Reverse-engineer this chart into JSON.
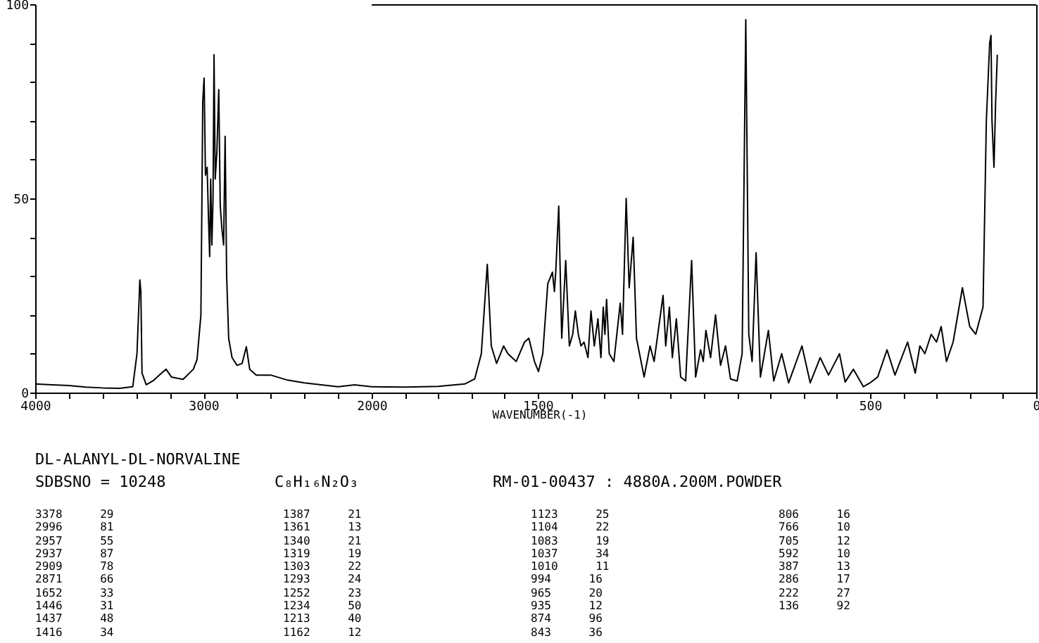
{
  "chart_data": [
    {
      "type": "line",
      "title": "DL-ALANYL-DL-NORVALINE",
      "subtitle": "SDBSNO = 10248",
      "annotations": [
        "C₈H₁₆N₂O₃",
        "RM-01-00437 : 4880A.200M.POWDER",
        "3378 29",
        "2996 81",
        "2957 55",
        "2937 87",
        "2909 78",
        "2871 66",
        "1652 33",
        "1446 31",
        "1437 48",
        "1416 34",
        "1387 21",
        "1361 13",
        "1340 21",
        "1319 19",
        "1303 22",
        "1293 24",
        "1252 23",
        "1234 50",
        "1213 40",
        "1162 12",
        "1123 25",
        "1104 22",
        "1083 19",
        "1037 34",
        "1010 11",
        "994 16",
        "965 20",
        "935 12",
        "874 96",
        "843 36",
        "806 16",
        "766 10",
        "705 12",
        "592 10",
        "387 13",
        "286 17",
        "222 27",
        "136 92"
      ],
      "x": [
        4000,
        3900,
        3800,
        3700,
        3600,
        3500,
        3420,
        3395,
        3378,
        3372,
        3365,
        3340,
        3300,
        3250,
        3222,
        3190,
        3121,
        3060,
        3038,
        3015,
        3004,
        2996,
        2988,
        2978,
        2970,
        2963,
        2957,
        2950,
        2943,
        2937,
        2930,
        2920,
        2909,
        2900,
        2890,
        2880,
        2871,
        2862,
        2850,
        2830,
        2800,
        2770,
        2745,
        2725,
        2686,
        2600,
        2500,
        2400,
        2300,
        2200,
        2100,
        2000
      ],
      "series": [
        {
          "color": "#000000",
          "values": [
            2.2,
            2,
            1.8,
            1.4,
            1.2,
            1.1,
            1.5,
            10,
            29,
            26,
            5,
            2,
            3,
            5,
            6,
            4,
            3.4,
            6,
            8.5,
            20,
            75,
            81,
            56,
            58,
            45,
            35,
            55,
            38,
            50,
            87,
            55,
            62,
            78,
            48,
            42,
            38,
            66,
            30,
            14,
            9,
            7,
            7.5,
            11.8,
            6,
            4.5,
            4.5,
            3.2,
            2.5,
            2,
            1.5,
            2,
            1.5
          ]
        }
      ],
      "xlim": [
        4000,
        2000
      ],
      "ylim": [
        0,
        100
      ],
      "xticks": [
        4000,
        {
          "value": 3800,
          "label": null
        },
        {
          "value": 3600,
          "label": null
        },
        {
          "value": 3400,
          "label": null
        },
        {
          "value": 3200,
          "label": null
        },
        3000,
        {
          "value": 2800,
          "label": null
        },
        {
          "value": 2600,
          "label": null
        },
        {
          "value": 2400,
          "label": null
        },
        {
          "value": 2200,
          "label": null
        }
      ],
      "yticks": [
        0,
        {
          "value": 10,
          "label": null
        },
        {
          "value": 20,
          "label": null
        },
        {
          "value": 30,
          "label": null
        },
        {
          "value": 40,
          "label": null
        },
        50,
        {
          "value": 60,
          "label": null
        },
        {
          "value": 70,
          "label": null
        },
        {
          "value": 80,
          "label": null
        },
        {
          "value": 90,
          "label": null
        },
        100
      ],
      "marker": "none",
      "line_style": "solid"
    },
    {
      "type": "line",
      "xlabel": "WAVENUMBER(-1)",
      "x": [
        2000,
        1900,
        1800,
        1720,
        1690,
        1670,
        1652,
        1640,
        1624,
        1603,
        1590,
        1565,
        1540,
        1527,
        1510,
        1498,
        1485,
        1470,
        1456,
        1450,
        1446,
        1437,
        1428,
        1416,
        1405,
        1395,
        1387,
        1378,
        1370,
        1361,
        1349,
        1340,
        1330,
        1319,
        1310,
        1303,
        1298,
        1293,
        1285,
        1271,
        1252,
        1245,
        1234,
        1225,
        1213,
        1203,
        1180,
        1162,
        1150,
        1123,
        1115,
        1104,
        1095,
        1083,
        1070,
        1055,
        1037,
        1025,
        1010,
        1002,
        994,
        980,
        965,
        950,
        935,
        920,
        900,
        885,
        874,
        865,
        855,
        843,
        830,
        806,
        790,
        766,
        745,
        705,
        680,
        650,
        625,
        592,
        575,
        550,
        520,
        500,
        477,
        449,
        425,
        387,
        364,
        350,
        335,
        316,
        300,
        286,
        270,
        250,
        222,
        200,
        182,
        160,
        150,
        140,
        136,
        133,
        127,
        122,
        117
      ],
      "series": [
        {
          "color": "#000000",
          "values": [
            1.5,
            1.4,
            1.6,
            2.2,
            3.5,
            10,
            33,
            12,
            7.5,
            12,
            10,
            8,
            13,
            14,
            8,
            5.4,
            10,
            28,
            31,
            26,
            31,
            48,
            14,
            34,
            12,
            15,
            21,
            15,
            12,
            13,
            9,
            21,
            12,
            19,
            9,
            22,
            15,
            24,
            10,
            8,
            23,
            15,
            50,
            27,
            40,
            14,
            4,
            12,
            8,
            25,
            12,
            22,
            9,
            19,
            4,
            3,
            34,
            4,
            11,
            8,
            16,
            9,
            20,
            7,
            12,
            3.5,
            3,
            10,
            96,
            15,
            8,
            36,
            4,
            16,
            3,
            10,
            2.5,
            12,
            2.5,
            9,
            4.5,
            10,
            2.7,
            6,
            1.5,
            2.5,
            4,
            11,
            4.5,
            13,
            5,
            12,
            10,
            15,
            13,
            17,
            8,
            13,
            27,
            17,
            15,
            22,
            70,
            90,
            92,
            70,
            58,
            75,
            87
          ]
        }
      ],
      "xlim": [
        2000,
        0
      ],
      "ylim": [
        0,
        100
      ],
      "xticks": [
        2000,
        {
          "value": 1900,
          "label": null
        },
        {
          "value": 1800,
          "label": null
        },
        {
          "value": 1700,
          "label": null
        },
        {
          "value": 1600,
          "label": null
        },
        1500,
        {
          "value": 1400,
          "label": null
        },
        {
          "value": 1300,
          "label": null
        },
        {
          "value": 1200,
          "label": null
        },
        {
          "value": 1100,
          "label": null
        },
        {
          "value": 1000,
          "label": null
        },
        {
          "value": 900,
          "label": null
        },
        {
          "value": 800,
          "label": null
        },
        {
          "value": 700,
          "label": null
        },
        {
          "value": 600,
          "label": null
        },
        500,
        {
          "value": 400,
          "label": null
        },
        {
          "value": 300,
          "label": null
        },
        {
          "value": 200,
          "label": null
        },
        {
          "value": 100,
          "label": null
        },
        0
      ],
      "tick_labels": "x",
      "marker": "none",
      "line_style": "solid"
    }
  ]
}
